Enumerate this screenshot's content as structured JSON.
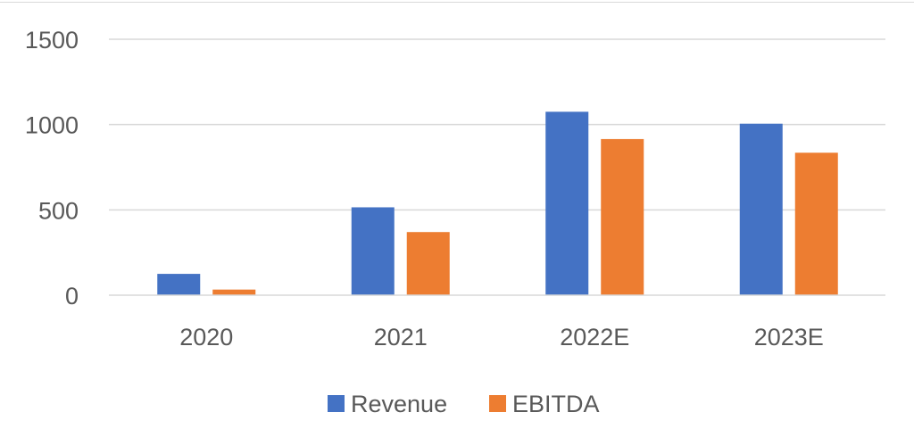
{
  "chart_data": {
    "type": "bar",
    "categories": [
      "2020",
      "2021",
      "2022E",
      "2023E"
    ],
    "series": [
      {
        "name": "Revenue",
        "values": [
          125,
          515,
          1075,
          1005
        ],
        "color": "#4472C4"
      },
      {
        "name": "EBITDA",
        "values": [
          33,
          370,
          915,
          835
        ],
        "color": "#ED7D31"
      }
    ],
    "title": "",
    "xlabel": "",
    "ylabel": "",
    "ylim": [
      0,
      1500
    ],
    "yticks": [
      0,
      500,
      1000,
      1500
    ],
    "y_tick_labels": [
      "0",
      "500",
      "1000",
      "1500"
    ],
    "grid": true,
    "legend_position": "bottom"
  }
}
